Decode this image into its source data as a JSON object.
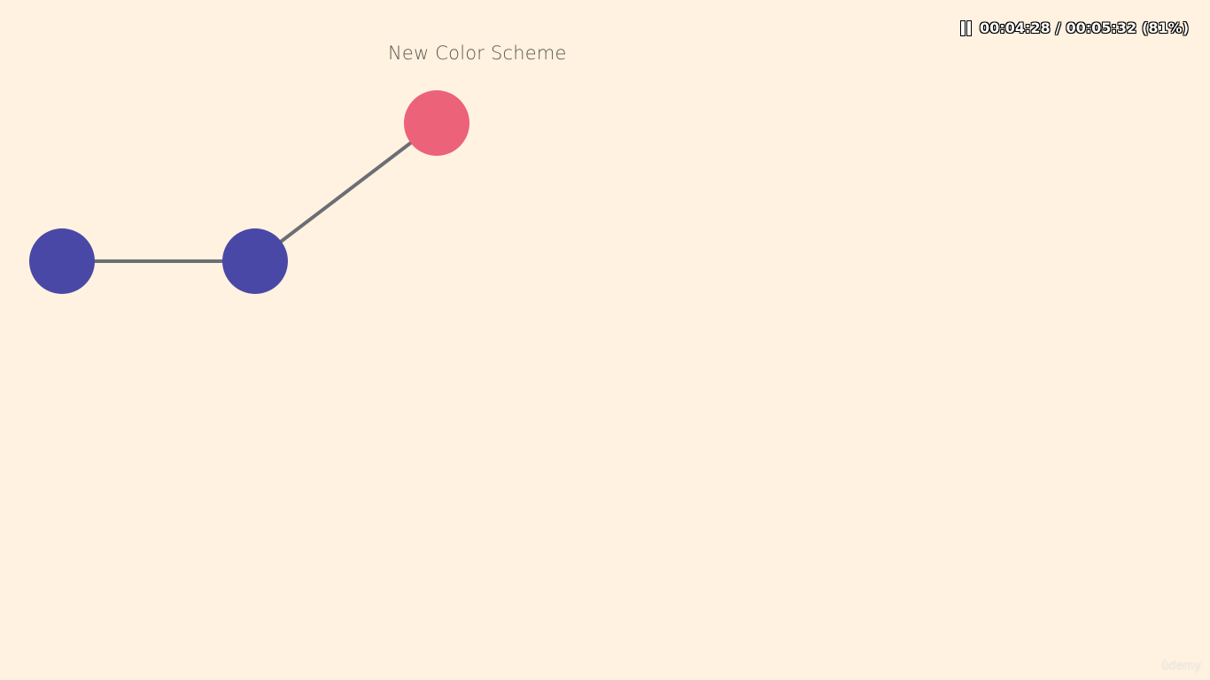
{
  "slide": {
    "title": "New Color Scheme"
  },
  "player": {
    "pause_icon": "pause-icon",
    "current_time": "00:04:28",
    "separator": "/",
    "total_time": "00:05:32",
    "percent": "(81%)"
  },
  "watermark": {
    "text": "ūdemy"
  },
  "diagram": {
    "nodes": [
      {
        "id": "node-left",
        "color": "#4a48a6"
      },
      {
        "id": "node-middle",
        "color": "#4a48a6"
      },
      {
        "id": "node-top",
        "color": "#ec6278"
      }
    ],
    "edges": [
      {
        "from": "node-left",
        "to": "node-middle",
        "color": "#6b6e74"
      },
      {
        "from": "node-middle",
        "to": "node-top",
        "color": "#6b6e74"
      }
    ]
  },
  "colors": {
    "background": "#fff2e0",
    "blue_node": "#4a48a6",
    "pink_node": "#ec6278",
    "edge": "#6b6e74",
    "title_text": "#5c5750"
  }
}
